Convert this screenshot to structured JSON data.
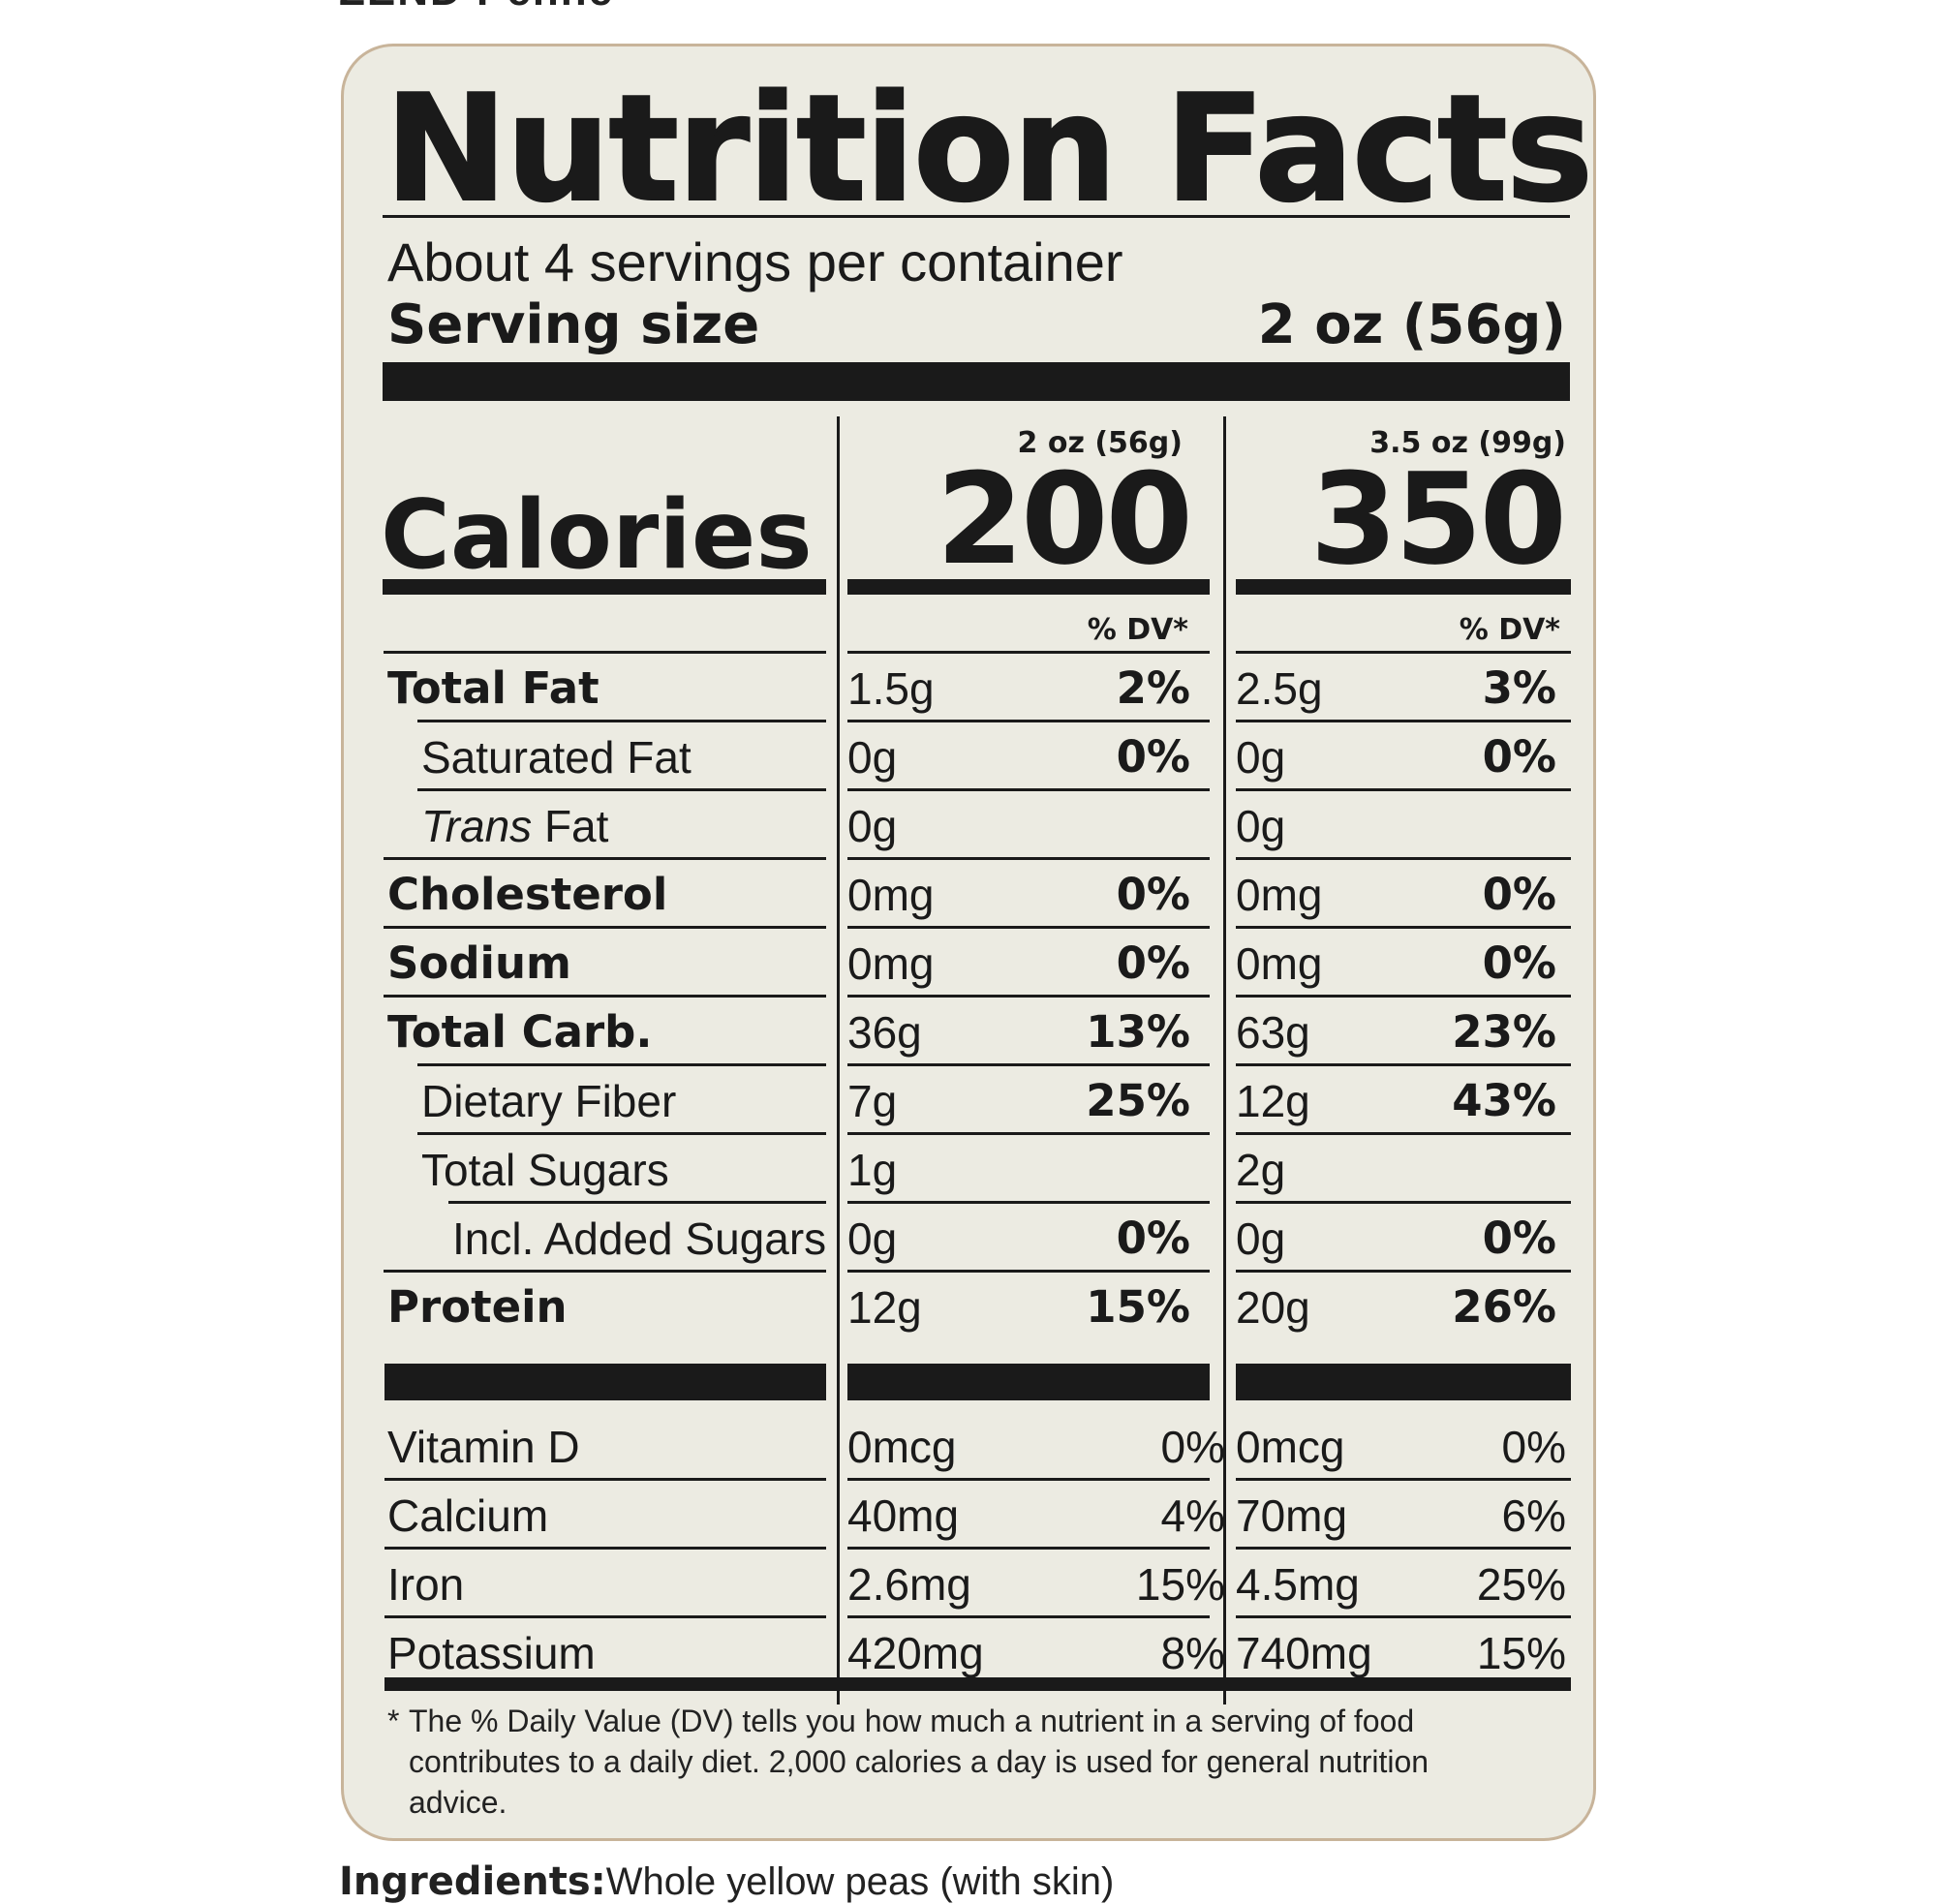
{
  "header_cut_text": "ZEND Penne",
  "label": {
    "title": "Nutrition Facts",
    "servings_per_container": "About 4 servings per container",
    "serving_size_label": "Serving size",
    "serving_size_value": "2 oz (56g)",
    "calories_label": "Calories",
    "columns": [
      {
        "heading": "2 oz (56g)",
        "calories": "200",
        "dv_heading": "% DV*"
      },
      {
        "heading": "3.5 oz (99g)",
        "calories": "350",
        "dv_heading": "% DV*"
      }
    ],
    "nutrients": [
      {
        "name": "Total Fat",
        "bold": true,
        "indent": 0,
        "c1_amount": "1.5g",
        "c1_dv": "2%",
        "c2_amount": "2.5g",
        "c2_dv": "3%"
      },
      {
        "name": "Saturated Fat",
        "bold": false,
        "indent": 1,
        "c1_amount": "0g",
        "c1_dv": "0%",
        "c2_amount": "0g",
        "c2_dv": "0%"
      },
      {
        "name_italic": "Trans",
        "name": " Fat",
        "bold": false,
        "indent": 1,
        "c1_amount": "0g",
        "c1_dv": "",
        "c2_amount": "0g",
        "c2_dv": ""
      },
      {
        "name": "Cholesterol",
        "bold": true,
        "indent": 0,
        "c1_amount": "0mg",
        "c1_dv": "0%",
        "c2_amount": "0mg",
        "c2_dv": "0%"
      },
      {
        "name": "Sodium",
        "bold": true,
        "indent": 0,
        "c1_amount": "0mg",
        "c1_dv": "0%",
        "c2_amount": "0mg",
        "c2_dv": "0%"
      },
      {
        "name": "Total Carb.",
        "bold": true,
        "indent": 0,
        "c1_amount": "36g",
        "c1_dv": "13%",
        "c2_amount": "63g",
        "c2_dv": "23%"
      },
      {
        "name": "Dietary Fiber",
        "bold": false,
        "indent": 1,
        "c1_amount": "7g",
        "c1_dv": "25%",
        "c2_amount": "12g",
        "c2_dv": "43%"
      },
      {
        "name": "Total Sugars",
        "bold": false,
        "indent": 1,
        "c1_amount": "1g",
        "c1_dv": "",
        "c2_amount": "2g",
        "c2_dv": ""
      },
      {
        "name": "Incl. Added Sugars",
        "bold": false,
        "indent": 2,
        "c1_amount": "0g",
        "c1_dv": "0%",
        "c2_amount": "0g",
        "c2_dv": "0%"
      },
      {
        "name": "Protein",
        "bold": true,
        "indent": 0,
        "c1_amount": "12g",
        "c1_dv": "15%",
        "c2_amount": "20g",
        "c2_dv": "26%"
      }
    ],
    "vitamins": [
      {
        "name": "Vitamin D",
        "c1_amount": "0mcg",
        "c1_dv": "0%",
        "c2_amount": "0mcg",
        "c2_dv": "0%"
      },
      {
        "name": "Calcium",
        "c1_amount": "40mg",
        "c1_dv": "4%",
        "c2_amount": "70mg",
        "c2_dv": "6%"
      },
      {
        "name": "Iron",
        "c1_amount": "2.6mg",
        "c1_dv": "15%",
        "c2_amount": "4.5mg",
        "c2_dv": "25%"
      },
      {
        "name": "Potassium",
        "c1_amount": "420mg",
        "c1_dv": "8%",
        "c2_amount": "740mg",
        "c2_dv": "15%"
      }
    ],
    "footnote_star": "*",
    "footnote": "The % Daily Value (DV) tells you how much a nutrient in a serving of food contributes to a daily diet. 2,000 calories a day is used for general nutrition advice."
  },
  "ingredients_cut": {
    "label": "Ingredients:",
    "text": "Whole yellow peas (with skin)"
  },
  "colors": {
    "panel_background": "#ecebe2",
    "panel_border": "#c8b49a",
    "ink": "#1a1a1a"
  }
}
